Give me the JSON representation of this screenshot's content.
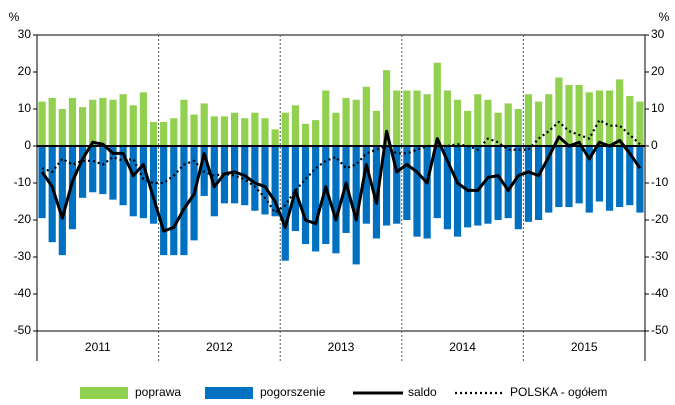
{
  "chart_data": {
    "type": "combo",
    "y_unit": "%",
    "categories": [
      null,
      null,
      null,
      null,
      null,
      null,
      null,
      null,
      null,
      null,
      null,
      null,
      null,
      null,
      null,
      null,
      null,
      null,
      null,
      null,
      null,
      null,
      null,
      null,
      null,
      null,
      null,
      null,
      null,
      null,
      null,
      null,
      null,
      null,
      null,
      null,
      null,
      null,
      null,
      null,
      null,
      null,
      null,
      null,
      null,
      null,
      null,
      null,
      null,
      null,
      null,
      null,
      null,
      null,
      null,
      null,
      null,
      null,
      null,
      null
    ],
    "groups": [
      "2011",
      "2012",
      "2013",
      "2014",
      "2015"
    ],
    "ylim": [
      -50,
      30
    ],
    "yticks": [
      30,
      20,
      10,
      0,
      -10,
      -20,
      -30,
      -40,
      -50
    ],
    "series": [
      {
        "name": "poprawa",
        "type": "bar",
        "color": "#92d050",
        "values": [
          12,
          13,
          10,
          13,
          10.5,
          12.5,
          13,
          12.5,
          14,
          11,
          14.5,
          6.5,
          6.5,
          7.5,
          12.5,
          8.5,
          11.5,
          8,
          8,
          9,
          7.5,
          9,
          7.5,
          4.5,
          9,
          11,
          6,
          7,
          15,
          9,
          13,
          12.5,
          16,
          9.5,
          20.5,
          15,
          15,
          15,
          14,
          22.5,
          15,
          12.5,
          9.5,
          14,
          12.5,
          9,
          11.5,
          10,
          14,
          12,
          14,
          18.5,
          16.5,
          16.5,
          14.5,
          15,
          15,
          18,
          13.5,
          12
        ]
      },
      {
        "name": "pogorszenie",
        "type": "bar",
        "color": "#0070c0",
        "values": [
          -19.5,
          -26,
          -29.5,
          -22.5,
          -14,
          -12.5,
          -13,
          -14.5,
          -16,
          -19,
          -19.5,
          -21,
          -29.5,
          -29.5,
          -29.5,
          -25.5,
          -13.5,
          -19,
          -15.5,
          -15.5,
          -16,
          -17.5,
          -18.5,
          -19,
          -31,
          -23,
          -26.5,
          -28.5,
          -26.5,
          -29,
          -23.5,
          -32,
          -21,
          -25,
          -21.5,
          -21,
          -20,
          -24.5,
          -25,
          -19.5,
          -22.5,
          -24.5,
          -22,
          -21.5,
          -21,
          -20,
          -19.5,
          -22.5,
          -20.5,
          -20,
          -18,
          -16.5,
          -16.5,
          -15.5,
          -18,
          -15,
          -17.5,
          -16.5,
          -16,
          -18
        ]
      },
      {
        "name": "saldo",
        "type": "line",
        "color": "#000000",
        "dash": "solid",
        "values": [
          -7,
          -11,
          -19.5,
          -9.5,
          -3.5,
          1,
          0.5,
          -2,
          -2,
          -8,
          -5,
          -14,
          -23,
          -22,
          -17,
          -13,
          -2,
          -11,
          -7.5,
          -7,
          -8,
          -10,
          -11,
          -15,
          -22,
          -12,
          -20,
          -21,
          -11,
          -20,
          -10,
          -20,
          -5,
          -15.5,
          4,
          -7,
          -5,
          -7,
          -10,
          2,
          -4,
          -10,
          -12,
          -12,
          -8.5,
          -8,
          -12,
          -8,
          -7,
          -8,
          -3,
          2.5,
          0,
          1,
          -3.5,
          1,
          0,
          1.5,
          -2,
          -6
        ]
      },
      {
        "name": "POLSKA - ogółem",
        "type": "line",
        "color": "#000000",
        "dash": "dotted",
        "values": [
          -6,
          -7,
          -3.5,
          -5,
          -4,
          -4,
          -5,
          -3,
          -4,
          -3.5,
          -9,
          -10,
          -10,
          -8,
          -5,
          -4,
          -7,
          -8,
          -7.5,
          -8,
          -9,
          -11,
          -14,
          -18,
          -16,
          -12,
          -9,
          -6,
          -4,
          -3,
          -6,
          -5,
          -2,
          -1,
          0,
          -2,
          -2,
          -1,
          0,
          0,
          0,
          0.5,
          0,
          -1,
          2,
          1,
          -1,
          -1,
          -1,
          2,
          4,
          6.5,
          4,
          3,
          2,
          7,
          5.5,
          5.5,
          3,
          0.5
        ]
      }
    ]
  }
}
